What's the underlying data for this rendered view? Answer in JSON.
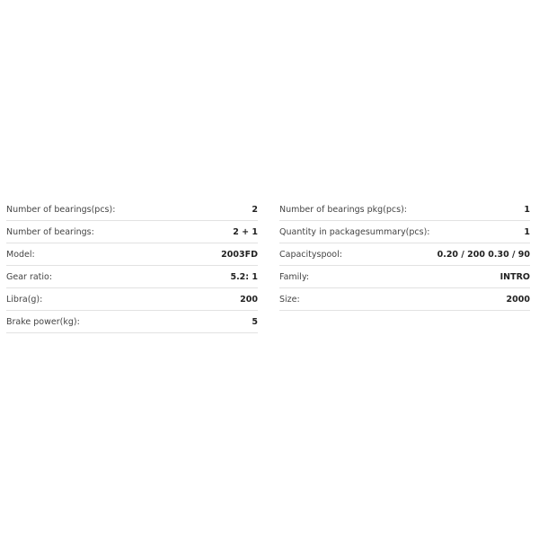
{
  "specs_left": [
    {
      "label": "Number of bearings(pcs):",
      "value": "2"
    },
    {
      "label": "Number of bearings:",
      "value": "2 + 1"
    },
    {
      "label": "Model:",
      "value": "2003FD"
    },
    {
      "label": "Gear ratio:",
      "value": "5.2: 1"
    },
    {
      "label": "Libra(g):",
      "value": "200"
    },
    {
      "label": "Brake power(kg):",
      "value": "5"
    }
  ],
  "specs_right": [
    {
      "label": "Number of bearings pkg(pcs):",
      "value": "1"
    },
    {
      "label": "Quantity in packagesummary(pcs):",
      "value": "1"
    },
    {
      "label": "Capacityspool:",
      "value": "0.20 / 200 0.30 / 90"
    },
    {
      "label": "Family:",
      "value": "INTRO"
    },
    {
      "label": "Size:",
      "value": "2000"
    }
  ]
}
